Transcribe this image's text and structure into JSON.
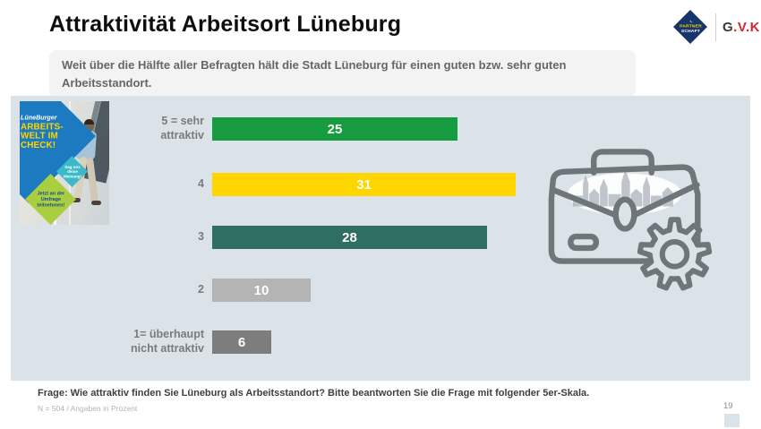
{
  "slide": {
    "title": "Attraktivität Arbeitsort Lüneburg",
    "subtitle": "Weit über die Hälfte aller Befragten hält die Stadt Lüneburg für einen guten bzw. sehr guten Arbeitsstandort.",
    "page_number": "19"
  },
  "logos": {
    "partnership": {
      "script_decoration": "∿",
      "word_top": "PARTNER",
      "word_bottom": "SCHAFT",
      "bg_color": "#17356b",
      "accent_color": "#ffd500"
    },
    "gvk": {
      "dark_part": "G",
      "red_part": ".V.K.",
      "dark_color": "#3a3a3a",
      "red_color": "#d22730"
    }
  },
  "poster": {
    "brand": "LüneBurger",
    "headline_line1": "ARBEITS-",
    "headline_line2": "WELT IM",
    "headline_line3": "CHECK!",
    "teal_badge_line1": "Sag uns",
    "teal_badge_line2": "deine",
    "teal_badge_line3": "Meinung!",
    "green_badge_line1": "Jetzt an der",
    "green_badge_line2": "Umfrage",
    "green_badge_line3": "teilnehmen!"
  },
  "chart_data": {
    "type": "bar",
    "orientation": "horizontal",
    "unit": "percent",
    "categories": [
      "5 = sehr attraktiv",
      "4",
      "3",
      "2",
      "1= überhaupt nicht attraktiv"
    ],
    "values": [
      25,
      31,
      28,
      10,
      6
    ],
    "bar_colors": [
      "#169b41",
      "#ffd500",
      "#2e6e63",
      "#b4b4b4",
      "#7d7d7d"
    ],
    "value_label_color": "#ffffff",
    "xlim": [
      0,
      35
    ],
    "grid": "off",
    "legend": "none",
    "panel_bg": "#dbe3e9"
  },
  "footer": {
    "question": "Frage: Wie attraktiv finden Sie Lüneburg als Arbeitsstandort? Bitte beantworten Sie die Frage mit folgender 5er-Skala.",
    "note": "N = 504 / Angaben in Prozent"
  }
}
